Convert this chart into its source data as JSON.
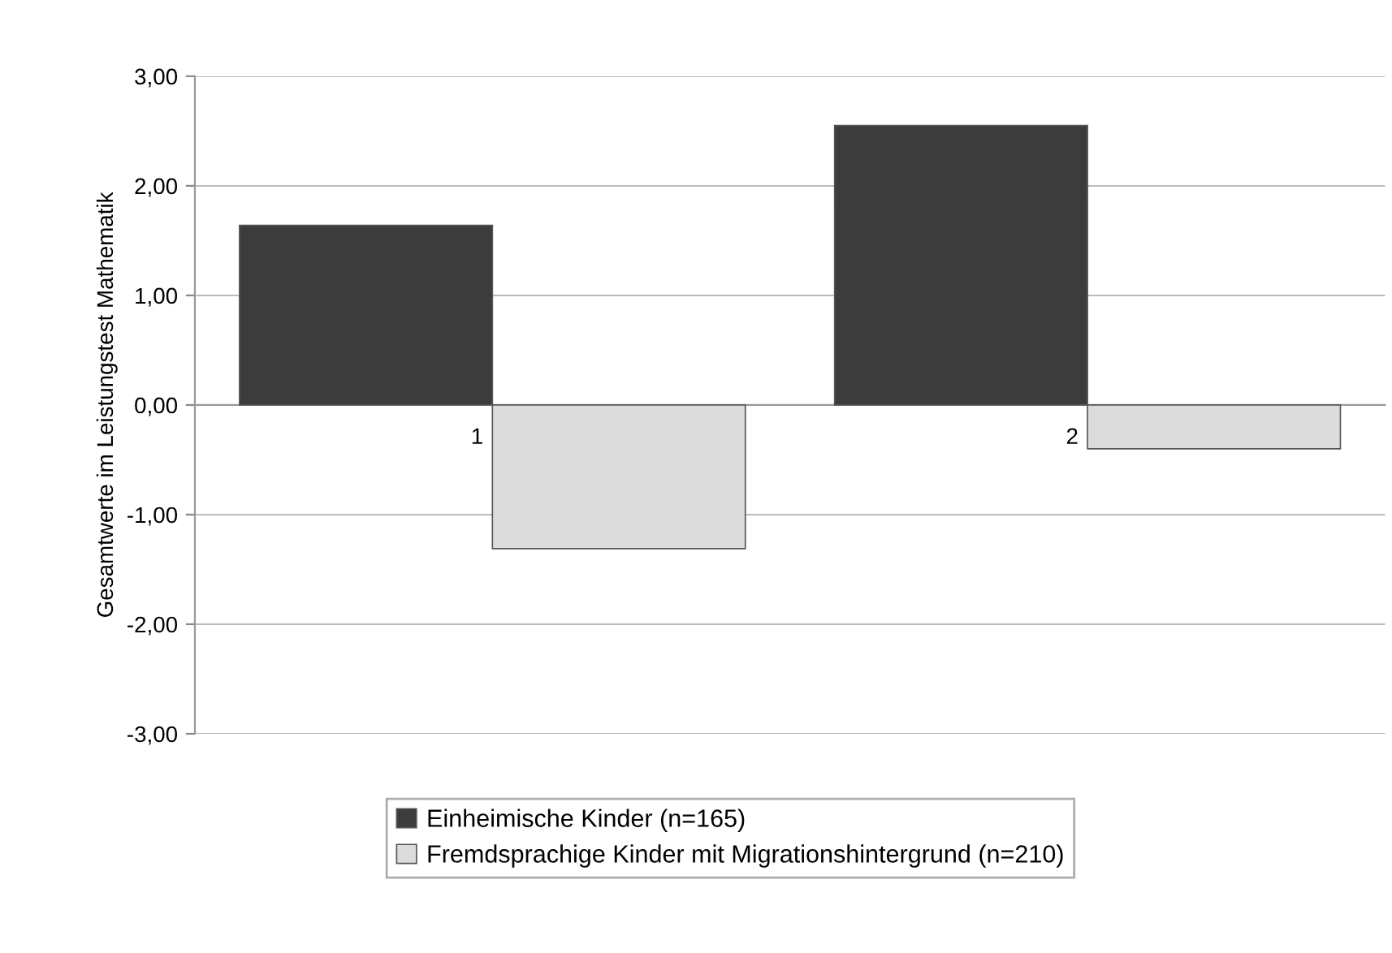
{
  "chart_data": {
    "type": "bar",
    "ylabel": "Gesamtwerte im Leistungstest Mathematik",
    "categories": [
      "1",
      "2"
    ],
    "series": [
      {
        "name": "Einheimische Kinder (n=165)",
        "color": "#3c3c3c",
        "values": [
          1.64,
          2.55
        ]
      },
      {
        "name": "Fremdsprachige Kinder mit Migrationshintergrund (n=210)",
        "color": "#dcdcdc",
        "values": [
          -1.31,
          -0.4
        ]
      }
    ],
    "ylim": [
      -3,
      3
    ],
    "yticks": [
      {
        "value": -3,
        "label": "-3,00"
      },
      {
        "value": -2,
        "label": "-2,00"
      },
      {
        "value": -1,
        "label": "-1,00"
      },
      {
        "value": 0,
        "label": "0,00"
      },
      {
        "value": 1,
        "label": "1,00"
      },
      {
        "value": 2,
        "label": "2,00"
      },
      {
        "value": 3,
        "label": "3,00"
      }
    ],
    "grid": "y",
    "legend": "bottom"
  }
}
